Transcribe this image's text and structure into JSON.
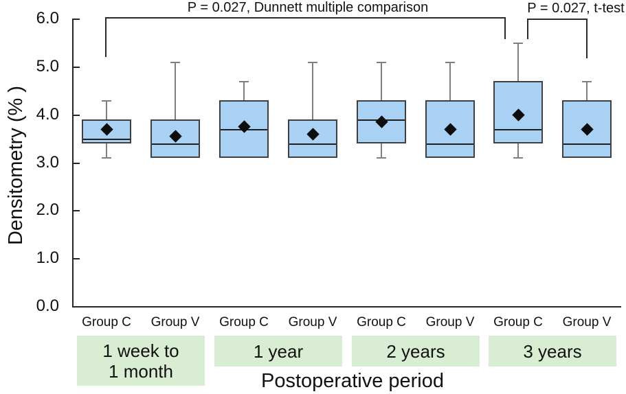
{
  "annotations": [
    {
      "id": "dunnett",
      "text": "P = 0.027, Dunnett multiple comparison",
      "from_box": 0,
      "to_box": 6
    },
    {
      "id": "ttest",
      "text": "P = 0.027, t-test",
      "from_box": 6,
      "to_box": 7
    }
  ],
  "colors": {
    "box_fill": "#a8d1f4",
    "box_border": "#3f3f3f",
    "median_line": "#1f1f1f",
    "whisker": "#7f7f7f",
    "mean_marker": "#0d0d0d",
    "period_band_fill": "#d9edd3",
    "axis": "#262626",
    "bracket": "#2b2b2b"
  },
  "chart_data": {
    "type": "boxplot",
    "title": "",
    "ylabel": "Densitometry (% )",
    "xlabel": "Postoperative period",
    "ylim": [
      0.0,
      6.0
    ],
    "ytick_step": 1.0,
    "ytick_labels": [
      "0.0",
      "1.0",
      "2.0",
      "3.0",
      "4.0",
      "5.0",
      "6.0"
    ],
    "grid": false,
    "legend": "none",
    "mean_marker_shape": "black diamond",
    "periods": [
      {
        "label_lines": [
          "1 week to",
          "1 month"
        ],
        "box_indices": [
          0,
          1
        ]
      },
      {
        "label_lines": [
          "1 year"
        ],
        "box_indices": [
          2,
          3
        ]
      },
      {
        "label_lines": [
          "2 years"
        ],
        "box_indices": [
          4,
          5
        ]
      },
      {
        "label_lines": [
          "3 years"
        ],
        "box_indices": [
          6,
          7
        ]
      }
    ],
    "boxes": [
      {
        "period": "1 week to 1 month",
        "group": "Group C",
        "min": 3.1,
        "q1": 3.4,
        "median": 3.5,
        "q3": 3.9,
        "max": 4.3,
        "mean": 3.7
      },
      {
        "period": "1 week to 1 month",
        "group": "Group V",
        "min": 3.1,
        "q1": 3.1,
        "median": 3.4,
        "q3": 3.9,
        "max": 5.1,
        "mean": 3.55
      },
      {
        "period": "1 year",
        "group": "Group C",
        "min": 3.1,
        "q1": 3.1,
        "median": 3.7,
        "q3": 4.3,
        "max": 4.7,
        "mean": 3.75
      },
      {
        "period": "1 year",
        "group": "Group V",
        "min": 3.1,
        "q1": 3.1,
        "median": 3.4,
        "q3": 3.9,
        "max": 5.1,
        "mean": 3.6
      },
      {
        "period": "2 years",
        "group": "Group C",
        "min": 3.1,
        "q1": 3.4,
        "median": 3.9,
        "q3": 4.3,
        "max": 5.1,
        "mean": 3.85
      },
      {
        "period": "2 years",
        "group": "Group V",
        "min": 3.1,
        "q1": 3.1,
        "median": 3.4,
        "q3": 4.3,
        "max": 5.1,
        "mean": 3.7
      },
      {
        "period": "3 years",
        "group": "Group C",
        "min": 3.1,
        "q1": 3.4,
        "median": 3.7,
        "q3": 4.7,
        "max": 5.5,
        "mean": 4.0
      },
      {
        "period": "3 years",
        "group": "Group V",
        "min": 3.1,
        "q1": 3.1,
        "median": 3.4,
        "q3": 4.3,
        "max": 4.7,
        "mean": 3.7
      }
    ]
  }
}
